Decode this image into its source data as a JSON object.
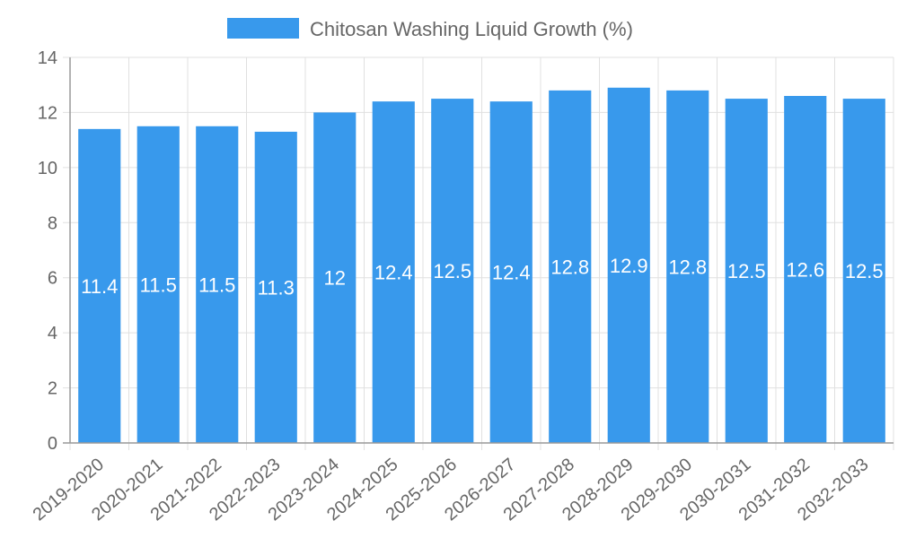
{
  "chart_data": {
    "type": "bar",
    "categories": [
      "2019-2020",
      "2020-2021",
      "2021-2022",
      "2022-2023",
      "2023-2024",
      "2024-2025",
      "2025-2026",
      "2026-2027",
      "2027-2028",
      "2028-2029",
      "2029-2030",
      "2030-2031",
      "2031-2032",
      "2032-2033"
    ],
    "series": [
      {
        "name": "Chitosan Washing Liquid Growth (%)",
        "values": [
          11.4,
          11.5,
          11.5,
          11.3,
          12,
          12.4,
          12.5,
          12.4,
          12.8,
          12.9,
          12.8,
          12.5,
          12.6,
          12.5
        ],
        "color": "#3899ec"
      }
    ],
    "ylim": [
      0,
      14
    ],
    "yticks": [
      0,
      2,
      4,
      6,
      8,
      10,
      12,
      14
    ],
    "grid": true,
    "legend_position": "top",
    "data_labels": true
  }
}
